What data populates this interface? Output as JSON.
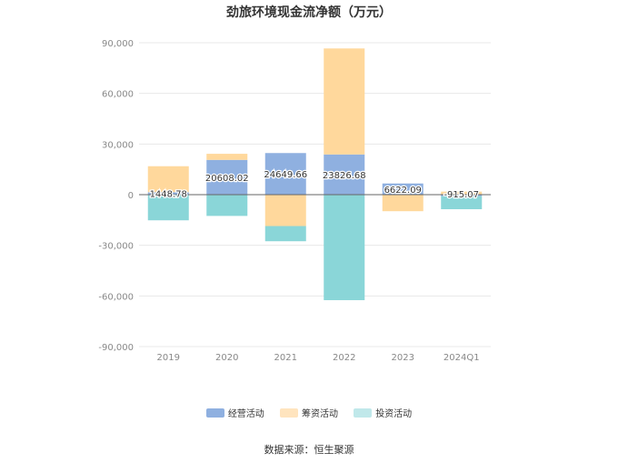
{
  "chart_data": {
    "type": "bar",
    "stacked": true,
    "title": "劲旅环境现金流净额（万元）",
    "xlabel": "",
    "ylabel": "",
    "categories": [
      "2019",
      "2020",
      "2021",
      "2022",
      "2023",
      "2024Q1"
    ],
    "ylim": [
      -90000,
      90000
    ],
    "yticks": [
      90000,
      60000,
      30000,
      0,
      -30000,
      -60000,
      -90000
    ],
    "ytick_labels": [
      "90,000",
      "60,000",
      "30,000",
      "0",
      "-30,000",
      "-60,000",
      "-90,000"
    ],
    "grid": true,
    "legend_position": "bottom-center",
    "series": [
      {
        "name": "经营活动",
        "color": "#8fb0e0",
        "values": [
          1448.78,
          20608.02,
          24649.66,
          23826.68,
          6622.09,
          -915.07
        ]
      },
      {
        "name": "筹资活动",
        "color": "#ffd89c",
        "values": [
          15400,
          3600,
          -18600,
          62800,
          -9800,
          1800
        ]
      },
      {
        "name": "投资活动",
        "color": "#8ad6d8",
        "values": [
          -15200,
          -12600,
          -9000,
          -62500,
          0,
          -7700
        ]
      }
    ],
    "data_labels": [
      "1448.78",
      "20608.02",
      "24649.66",
      "23826.68",
      "6622.09",
      "-915.07"
    ],
    "source": "数据来源：恒生聚源"
  },
  "legend_swatches": [
    "#8fb0e0",
    "#ffe4be",
    "#c0e8ea"
  ]
}
